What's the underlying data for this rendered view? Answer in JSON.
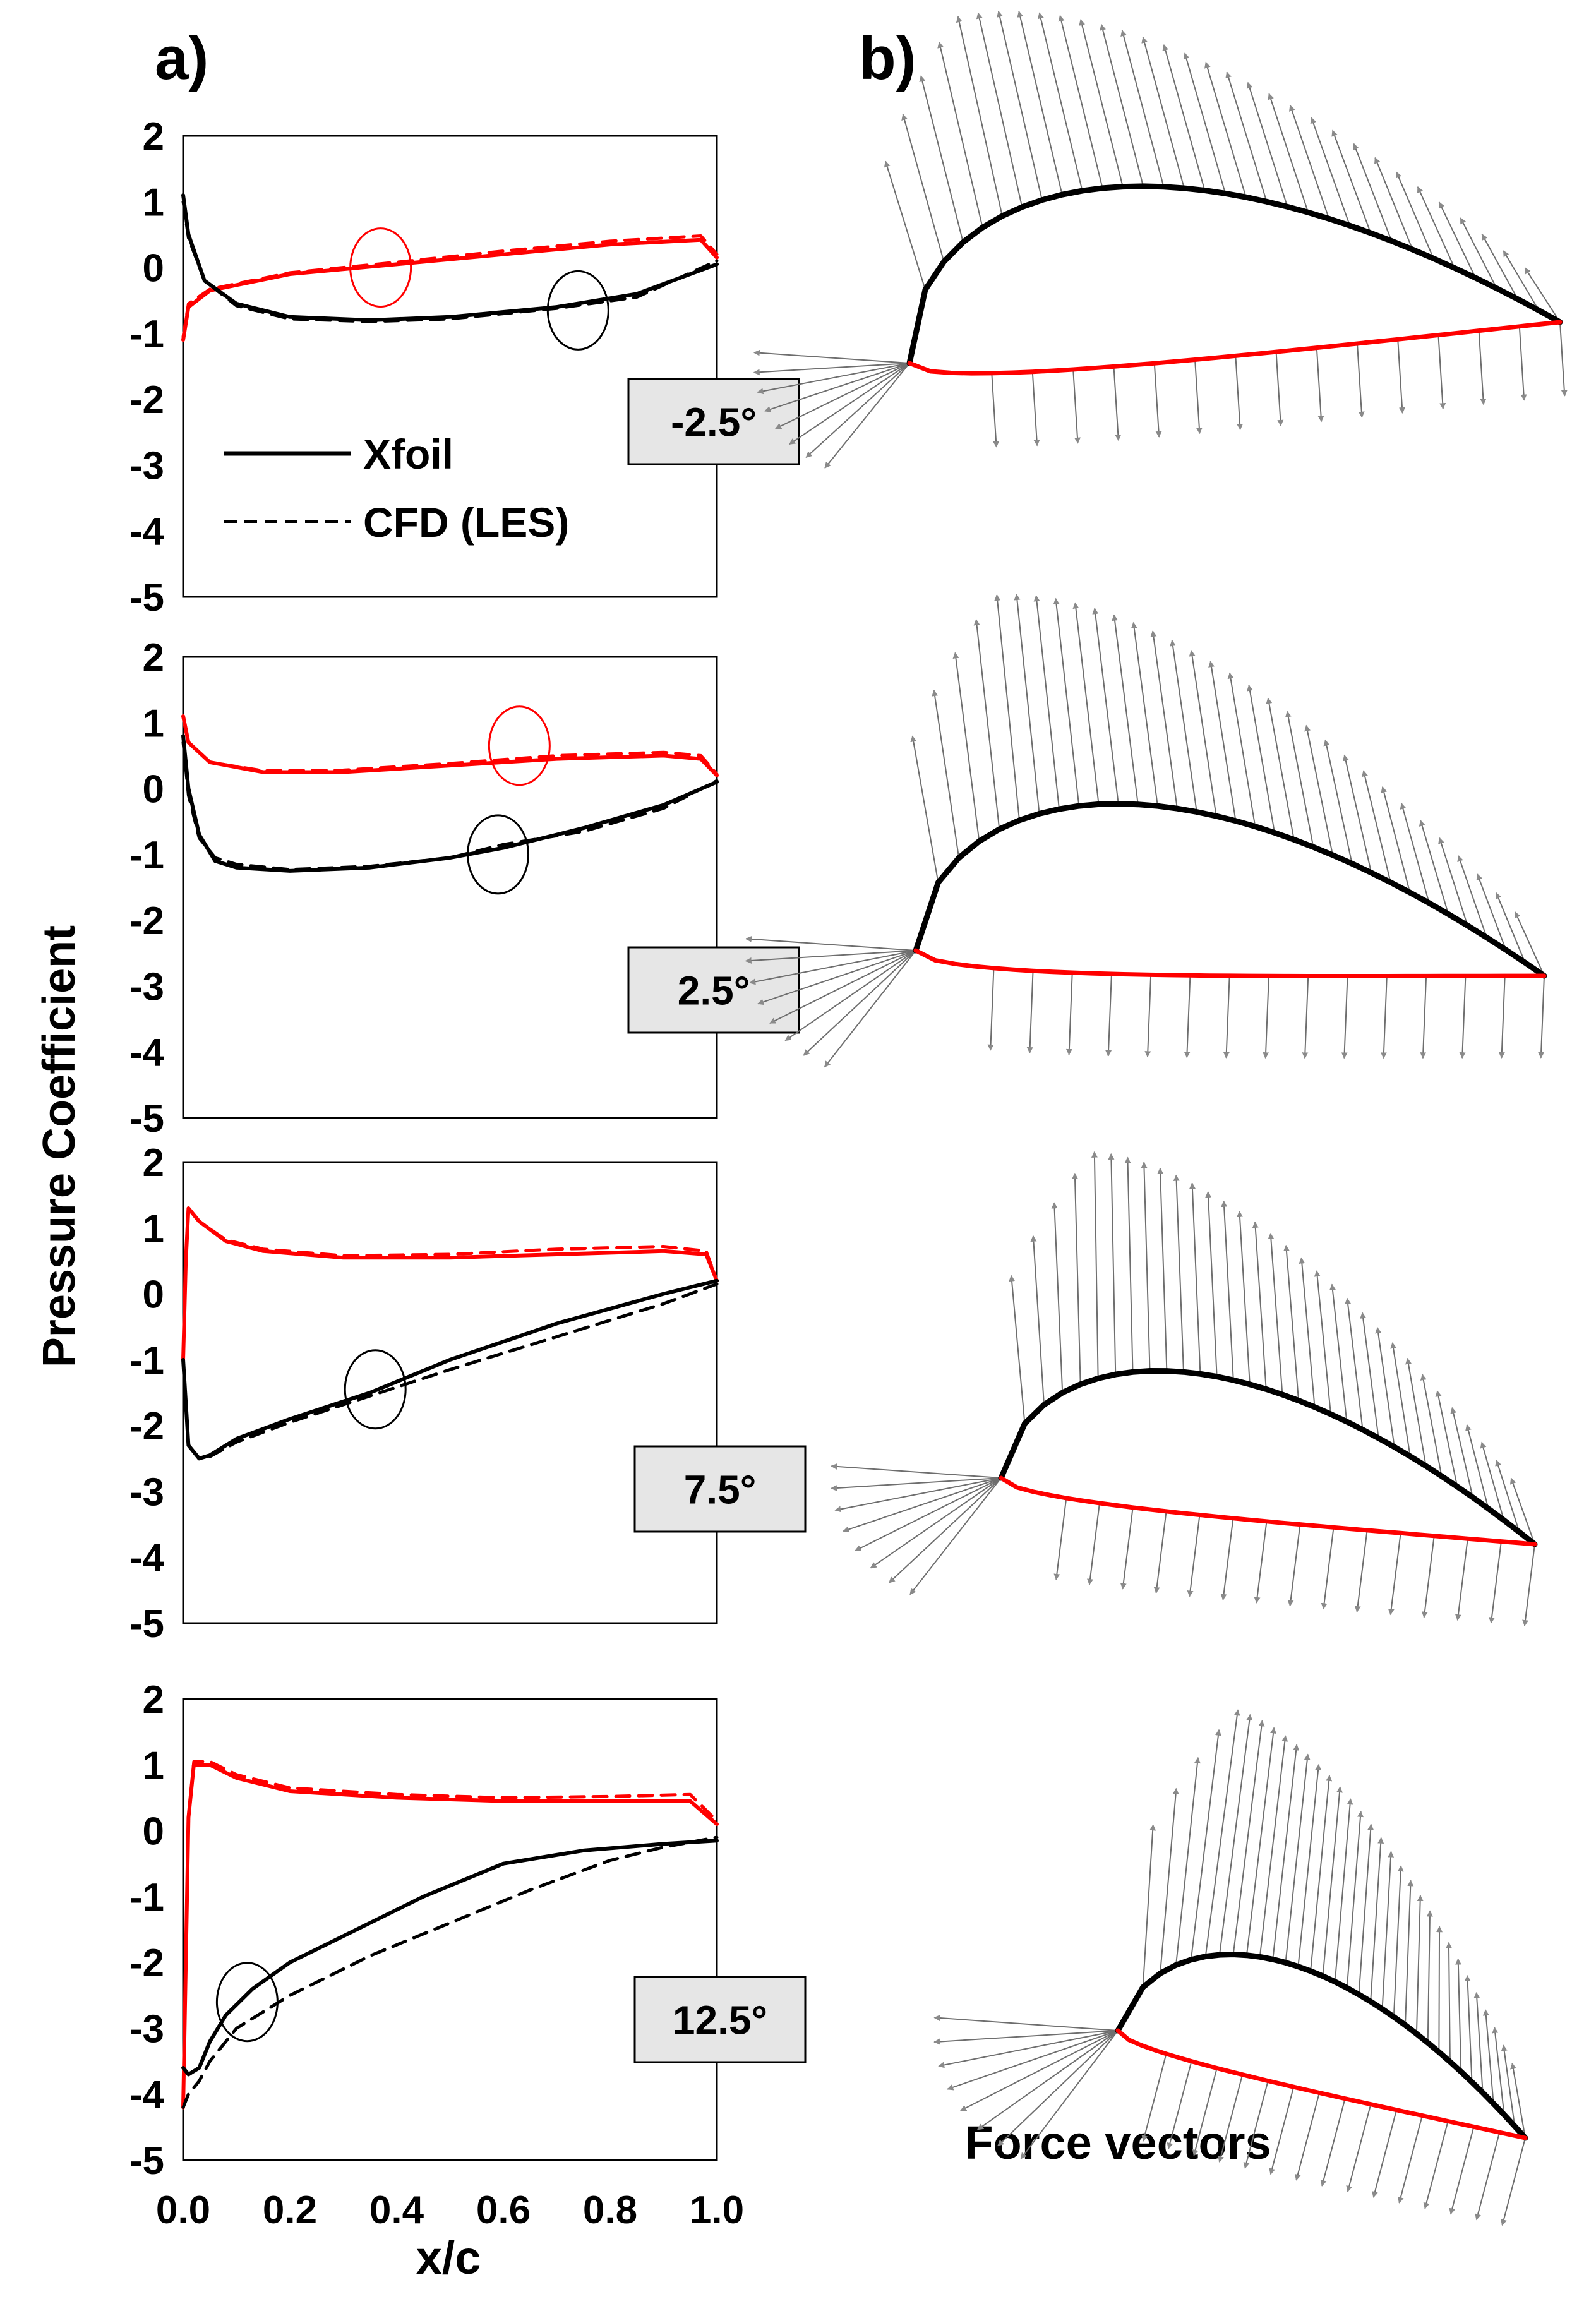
{
  "panel_labels": {
    "a": "a)",
    "b": "b)"
  },
  "colors": {
    "pressure_side": "#ff0000",
    "suction_side": "#000000",
    "vectors": "#6e6e6e",
    "label_box": "#e6e6e6"
  },
  "chart_data": {
    "type": "line",
    "ylabel": "Pressure Coefficient",
    "xlabel": "x/c",
    "x_ticks": [
      "0.0",
      "0.2",
      "0.4",
      "0.6",
      "0.8",
      "1.0"
    ],
    "y_ticks": [
      "2",
      "1",
      "0",
      "-1",
      "-2",
      "-3",
      "-4",
      "-5"
    ],
    "xlim": [
      0,
      1.0
    ],
    "ylim": [
      -5,
      2
    ],
    "legend": {
      "entries": [
        "Xfoil",
        "CFD (LES)"
      ],
      "placement": "lower-left of top panel"
    },
    "vectors_caption": "Force vectors",
    "panels": [
      {
        "angle": "-2.5°",
        "series": [
          {
            "name": "Xfoil",
            "side": "red",
            "style": "solid",
            "x": [
              0,
              0.01,
              0.05,
              0.2,
              0.4,
              0.6,
              0.8,
              0.97,
              1.0
            ],
            "y": [
              -1.1,
              -0.6,
              -0.35,
              -0.1,
              0.05,
              0.2,
              0.35,
              0.42,
              0.15
            ]
          },
          {
            "name": "CFD (LES)",
            "side": "red",
            "style": "dashed",
            "x": [
              0,
              0.01,
              0.05,
              0.2,
              0.4,
              0.6,
              0.8,
              0.97,
              1.0
            ],
            "y": [
              -1.05,
              -0.55,
              -0.33,
              -0.08,
              0.08,
              0.25,
              0.4,
              0.48,
              0.2
            ]
          },
          {
            "name": "Xfoil",
            "side": "black",
            "style": "solid",
            "x": [
              0,
              0.01,
              0.04,
              0.1,
              0.2,
              0.35,
              0.5,
              0.7,
              0.85,
              1.0
            ],
            "y": [
              1.1,
              0.5,
              -0.2,
              -0.55,
              -0.75,
              -0.8,
              -0.75,
              -0.6,
              -0.4,
              0.05
            ]
          },
          {
            "name": "CFD (LES)",
            "side": "black",
            "style": "dashed",
            "x": [
              0,
              0.01,
              0.04,
              0.1,
              0.2,
              0.35,
              0.5,
              0.7,
              0.85,
              1.0
            ],
            "y": [
              1.0,
              0.45,
              -0.2,
              -0.58,
              -0.78,
              -0.82,
              -0.78,
              -0.62,
              -0.45,
              0.1
            ]
          }
        ],
        "circles": [
          {
            "color": "red",
            "x": 0.37,
            "y": 0.0
          },
          {
            "color": "black",
            "x": 0.74,
            "y": -0.65
          }
        ]
      },
      {
        "angle": "2.5°",
        "series": [
          {
            "name": "Xfoil",
            "side": "red",
            "style": "solid",
            "x": [
              0,
              0.01,
              0.05,
              0.15,
              0.3,
              0.5,
              0.7,
              0.9,
              0.97,
              1.0
            ],
            "y": [
              1.1,
              0.7,
              0.4,
              0.25,
              0.25,
              0.35,
              0.45,
              0.5,
              0.45,
              0.2
            ]
          },
          {
            "name": "CFD (LES)",
            "side": "red",
            "style": "dashed",
            "x": [
              0,
              0.01,
              0.05,
              0.15,
              0.3,
              0.5,
              0.7,
              0.9,
              0.97,
              1.0
            ],
            "y": [
              1.1,
              0.7,
              0.4,
              0.27,
              0.28,
              0.38,
              0.5,
              0.55,
              0.5,
              0.22
            ]
          },
          {
            "name": "Xfoil",
            "side": "black",
            "style": "solid",
            "x": [
              0,
              0.01,
              0.03,
              0.06,
              0.1,
              0.2,
              0.35,
              0.5,
              0.6,
              0.75,
              0.9,
              1.0
            ],
            "y": [
              0.8,
              0.0,
              -0.7,
              -1.1,
              -1.2,
              -1.25,
              -1.2,
              -1.05,
              -0.9,
              -0.6,
              -0.25,
              0.1
            ]
          },
          {
            "name": "CFD (LES)",
            "side": "black",
            "style": "dashed",
            "x": [
              0,
              0.01,
              0.03,
              0.06,
              0.1,
              0.2,
              0.35,
              0.5,
              0.6,
              0.75,
              0.9,
              1.0
            ],
            "y": [
              0.7,
              -0.1,
              -0.75,
              -1.05,
              -1.15,
              -1.23,
              -1.18,
              -1.05,
              -0.85,
              -0.65,
              -0.3,
              0.12
            ]
          }
        ],
        "circles": [
          {
            "color": "red",
            "x": 0.63,
            "y": 0.65
          },
          {
            "color": "black",
            "x": 0.59,
            "y": -1.0
          }
        ]
      },
      {
        "angle": "7.5°",
        "series": [
          {
            "name": "Xfoil",
            "side": "red",
            "style": "solid",
            "x": [
              0,
              0.005,
              0.01,
              0.03,
              0.08,
              0.15,
              0.3,
              0.5,
              0.7,
              0.9,
              0.98,
              1.0
            ],
            "y": [
              -1.0,
              0.5,
              1.3,
              1.1,
              0.8,
              0.65,
              0.55,
              0.55,
              0.6,
              0.65,
              0.6,
              0.2
            ]
          },
          {
            "name": "CFD (LES)",
            "side": "red",
            "style": "dashed",
            "x": [
              0,
              0.005,
              0.01,
              0.03,
              0.08,
              0.15,
              0.3,
              0.5,
              0.7,
              0.9,
              0.98,
              1.0
            ],
            "y": [
              -1.0,
              0.5,
              1.28,
              1.1,
              0.82,
              0.68,
              0.58,
              0.6,
              0.68,
              0.72,
              0.65,
              0.2
            ]
          },
          {
            "name": "Xfoil",
            "side": "black",
            "style": "solid",
            "x": [
              0,
              0.01,
              0.03,
              0.05,
              0.1,
              0.2,
              0.35,
              0.5,
              0.7,
              0.9,
              1.0
            ],
            "y": [
              -1.0,
              -2.3,
              -2.5,
              -2.45,
              -2.2,
              -1.9,
              -1.5,
              -1.0,
              -0.45,
              0.0,
              0.2
            ]
          },
          {
            "name": "CFD (LES)",
            "side": "black",
            "style": "dashed",
            "x": [
              0,
              0.01,
              0.03,
              0.05,
              0.1,
              0.2,
              0.35,
              0.5,
              0.7,
              0.9,
              1.0
            ],
            "y": [
              -1.0,
              -2.3,
              -2.5,
              -2.47,
              -2.25,
              -1.95,
              -1.55,
              -1.15,
              -0.65,
              -0.15,
              0.15
            ]
          }
        ],
        "circles": [
          {
            "color": "black",
            "x": 0.36,
            "y": -1.45
          }
        ]
      },
      {
        "angle": "12.5°",
        "series": [
          {
            "name": "Xfoil",
            "side": "red",
            "style": "solid",
            "x": [
              0,
              0.01,
              0.02,
              0.05,
              0.1,
              0.2,
              0.4,
              0.6,
              0.8,
              0.95,
              1.0
            ],
            "y": [
              -4.2,
              0.2,
              1.0,
              1.0,
              0.8,
              0.6,
              0.5,
              0.45,
              0.45,
              0.45,
              0.1
            ]
          },
          {
            "name": "CFD (LES)",
            "side": "red",
            "style": "dashed",
            "x": [
              0,
              0.01,
              0.02,
              0.05,
              0.1,
              0.2,
              0.4,
              0.6,
              0.8,
              0.95,
              1.0
            ],
            "y": [
              -4.2,
              0.2,
              1.05,
              1.05,
              0.85,
              0.65,
              0.55,
              0.5,
              0.52,
              0.55,
              0.15
            ]
          },
          {
            "name": "Xfoil",
            "side": "black",
            "style": "solid",
            "x": [
              0,
              0.01,
              0.03,
              0.05,
              0.08,
              0.13,
              0.2,
              0.3,
              0.45,
              0.6,
              0.75,
              0.9,
              1.0
            ],
            "y": [
              -3.6,
              -3.7,
              -3.6,
              -3.2,
              -2.8,
              -2.4,
              -2.0,
              -1.6,
              -1.0,
              -0.5,
              -0.3,
              -0.2,
              -0.15
            ]
          },
          {
            "name": "CFD (LES)",
            "side": "black",
            "style": "dashed",
            "x": [
              0,
              0.01,
              0.03,
              0.05,
              0.1,
              0.2,
              0.35,
              0.5,
              0.65,
              0.8,
              0.9,
              1.0
            ],
            "y": [
              -4.2,
              -4.0,
              -3.8,
              -3.5,
              -3.0,
              -2.5,
              -1.9,
              -1.4,
              -0.9,
              -0.45,
              -0.25,
              -0.1
            ]
          }
        ],
        "circles": [
          {
            "color": "black",
            "x": 0.12,
            "y": -2.6
          }
        ]
      }
    ]
  }
}
